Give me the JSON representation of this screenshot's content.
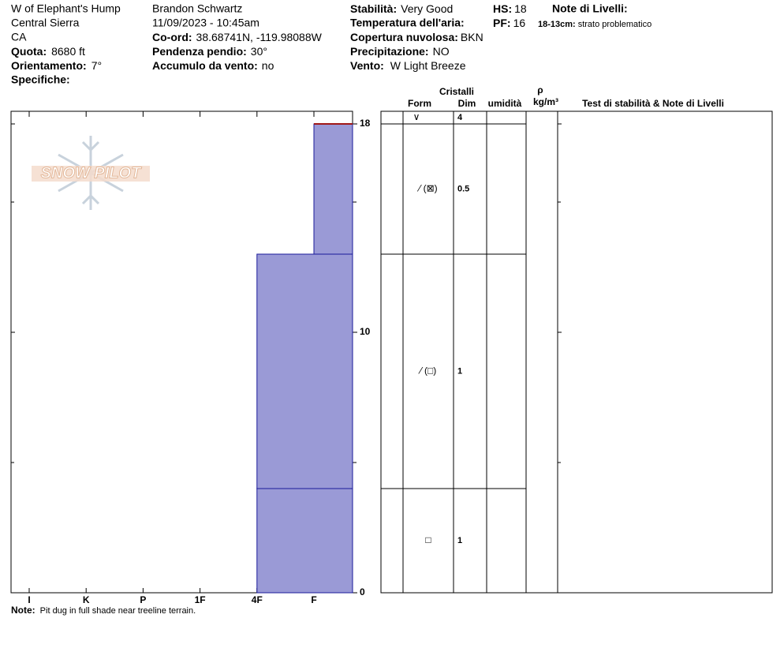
{
  "header": {
    "location": "W of Elephant's Hump",
    "range": "Central Sierra",
    "state": "CA",
    "elevation": {
      "label": "Quota:",
      "value": "8680 ft"
    },
    "aspect": {
      "label": "Orientamento:",
      "value": "7°"
    },
    "specifics": {
      "label": "Specifiche:"
    },
    "observer": "Brandon Schwartz",
    "datetime": "11/09/2023 - 10:45am",
    "coords": {
      "label": "Co-ord:",
      "value": "38.68741N, -119.98088W"
    },
    "slope": {
      "label": "Pendenza pendio:",
      "value": "30°"
    },
    "wind_loading": {
      "label": "Accumulo da vento:",
      "value": "no"
    },
    "stability": {
      "label": "Stabilità:",
      "value": "Very Good"
    },
    "air_temp": {
      "label": "Temperatura dell'aria:"
    },
    "sky": {
      "label": "Copertura nuvolosa:",
      "value": "BKN"
    },
    "precip": {
      "label": "Precipitazione:",
      "value": "NO"
    },
    "wind": {
      "label": "Vento:",
      "value": "W Light Breeze"
    },
    "hs": {
      "label": "HS:",
      "value": 18
    },
    "pf": {
      "label": "PF:",
      "value": 16
    },
    "layer_notes": {
      "title": "Note di Livelli:",
      "items": [
        {
          "range": "18-13cm:",
          "text": "strato problematico"
        }
      ]
    }
  },
  "note": {
    "label": "Note:",
    "text": "Pit dug in full shade near treeline terrain."
  },
  "logo": "SNOW PILOT",
  "table_headers": {
    "crystals": "Cristalli",
    "form": "Form",
    "size": "Dim",
    "moisture": "umidità",
    "rho": "ρ",
    "density_unit": "kg/m³",
    "tests": "Test di stabilità & Note di Livelli"
  },
  "chart_data": {
    "type": "snow-profile",
    "hardness_scale": [
      "I",
      "K",
      "P",
      "1F",
      "4F",
      "F"
    ],
    "ylim": [
      0,
      18
    ],
    "yticks": [
      0,
      10,
      18
    ],
    "minor_yticks": [
      5,
      15
    ],
    "color": "#9a9ad6",
    "edge_color": "#1a1a9a",
    "surface_color": "#a01818",
    "surface": {
      "grain_form": "∨",
      "size": 4
    },
    "layers": [
      {
        "top": 18,
        "bottom": 13,
        "hardness": "F",
        "grain_form": "⁄ (⊠)",
        "size": 0.5
      },
      {
        "top": 13,
        "bottom": 4,
        "hardness": "4F",
        "grain_form": "⁄ (□)",
        "size": 1
      },
      {
        "top": 4,
        "bottom": 0,
        "hardness": "4F",
        "grain_form": "□",
        "size": 1
      }
    ]
  }
}
